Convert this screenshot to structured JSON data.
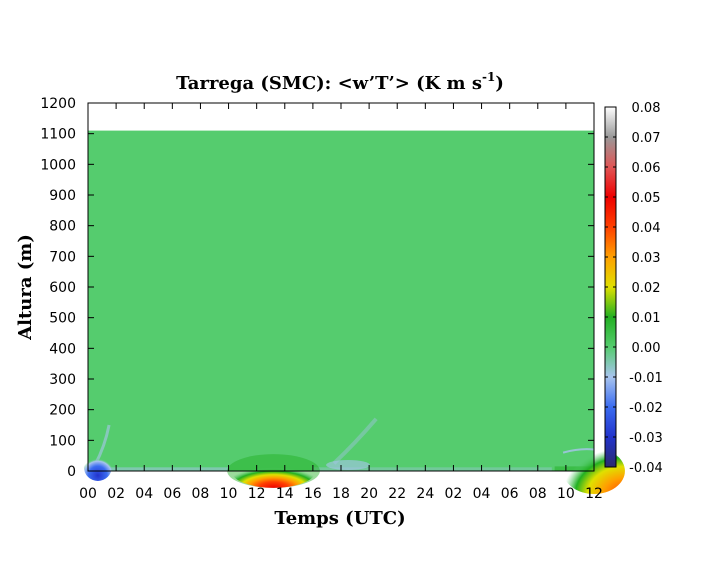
{
  "chart_data": {
    "type": "heatmap",
    "title": {
      "main": "Tarrega (SMC): <w’T’> (K m s",
      "sup": "-1",
      "close": ")"
    },
    "xlabel": "Temps (UTC)",
    "ylabel": "Altura (m)",
    "x_ticks": [
      "00",
      "02",
      "04",
      "06",
      "08",
      "10",
      "12",
      "14",
      "16",
      "18",
      "20",
      "22",
      "24",
      "02",
      "04",
      "06",
      "08",
      "10",
      "12"
    ],
    "x_range_hours": [
      0,
      36
    ],
    "y_ticks": [
      0,
      100,
      200,
      300,
      400,
      500,
      600,
      700,
      800,
      900,
      1000,
      1100,
      1200
    ],
    "ylim": [
      0,
      1200
    ],
    "data_top_height_m": 1110,
    "background_value": 0.0,
    "colorbar": {
      "ticks": [
        "0.08",
        "0.07",
        "0.06",
        "0.05",
        "0.04",
        "0.03",
        "0.02",
        "0.01",
        "0.00",
        "-0.01",
        "-0.02",
        "-0.03",
        "-0.04"
      ],
      "range": [
        -0.04,
        0.08
      ],
      "colors": [
        {
          "v": -0.04,
          "c": "#2a2a6e"
        },
        {
          "v": -0.03,
          "c": "#2233cc"
        },
        {
          "v": -0.02,
          "c": "#3b6cf0"
        },
        {
          "v": -0.01,
          "c": "#a8c4ee"
        },
        {
          "v": 0.0,
          "c": "#55cc6e"
        },
        {
          "v": 0.01,
          "c": "#22b022"
        },
        {
          "v": 0.02,
          "c": "#e0e000"
        },
        {
          "v": 0.03,
          "c": "#ffa000"
        },
        {
          "v": 0.04,
          "c": "#ff4000"
        },
        {
          "v": 0.05,
          "c": "#ee0000"
        },
        {
          "v": 0.06,
          "c": "#e05555"
        },
        {
          "v": 0.07,
          "c": "#999999"
        },
        {
          "v": 0.08,
          "c": "#ffffff"
        }
      ]
    },
    "features": [
      {
        "label": "night-negative-flux",
        "time_h": 0.7,
        "height_m": 20,
        "value": -0.035
      },
      {
        "label": "daytime-positive-flux-day1",
        "time_h": 13.2,
        "height_m": 10,
        "value": 0.045
      },
      {
        "label": "morning-positive-flux-day2",
        "time_h": 35.0,
        "height_m": 15,
        "value": 0.035
      }
    ]
  }
}
